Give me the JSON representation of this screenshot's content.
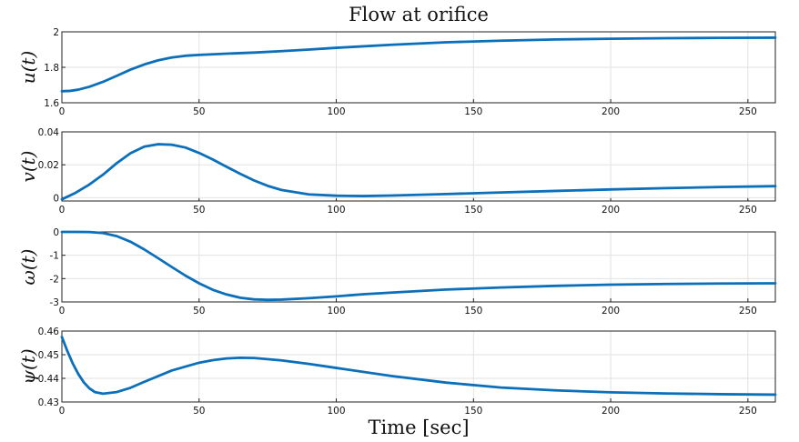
{
  "chart_data": {
    "type": "line",
    "title": "Flow at orifice",
    "xlabel": "Time [sec]",
    "line_color": "#0b6fba",
    "xlim": [
      0,
      260
    ],
    "x_ticks": [
      "0",
      "50",
      "100",
      "150",
      "200",
      "250"
    ],
    "subplots": [
      {
        "ylabel": "u(t)",
        "ylim": [
          1.6,
          2.0
        ],
        "y_ticks": [
          {
            "value": 1.6,
            "label": "1.6"
          },
          {
            "value": 1.8,
            "label": "1.8"
          },
          {
            "value": 2.0,
            "label": "2"
          }
        ],
        "series": {
          "x": [
            0,
            3,
            6,
            10,
            15,
            20,
            25,
            30,
            35,
            40,
            45,
            50,
            60,
            70,
            80,
            90,
            100,
            120,
            140,
            160,
            180,
            200,
            220,
            240,
            260
          ],
          "y": [
            1.665,
            1.667,
            1.674,
            1.69,
            1.718,
            1.752,
            1.787,
            1.816,
            1.839,
            1.855,
            1.865,
            1.87,
            1.877,
            1.883,
            1.891,
            1.9,
            1.91,
            1.927,
            1.941,
            1.95,
            1.957,
            1.961,
            1.964,
            1.966,
            1.967
          ]
        }
      },
      {
        "ylabel": "v(t)",
        "ylim": [
          -0.002,
          0.04
        ],
        "y_ticks": [
          {
            "value": 0,
            "label": "0"
          },
          {
            "value": 0.02,
            "label": "0.02"
          },
          {
            "value": 0.04,
            "label": "0.04"
          }
        ],
        "series": {
          "x": [
            0,
            5,
            10,
            15,
            20,
            25,
            30,
            35,
            40,
            45,
            50,
            55,
            60,
            65,
            70,
            75,
            80,
            90,
            100,
            110,
            120,
            140,
            160,
            180,
            200,
            220,
            240,
            260
          ],
          "y": [
            -0.001,
            0.003,
            0.008,
            0.014,
            0.021,
            0.027,
            0.031,
            0.0325,
            0.0322,
            0.0305,
            0.0272,
            0.0232,
            0.0188,
            0.0145,
            0.0105,
            0.0072,
            0.0047,
            0.002,
            0.0012,
            0.001,
            0.0013,
            0.0022,
            0.0032,
            0.0041,
            0.005,
            0.0058,
            0.0065,
            0.007
          ]
        }
      },
      {
        "ylabel": "ω(t)",
        "ylim": [
          -3,
          0
        ],
        "y_ticks": [
          {
            "value": -3,
            "label": "-3"
          },
          {
            "value": -2,
            "label": "-2"
          },
          {
            "value": -1,
            "label": "-1"
          },
          {
            "value": 0,
            "label": "0"
          }
        ],
        "series": {
          "x": [
            0,
            5,
            10,
            15,
            20,
            25,
            30,
            35,
            40,
            45,
            50,
            55,
            60,
            65,
            70,
            75,
            80,
            90,
            100,
            110,
            120,
            140,
            160,
            180,
            200,
            220,
            240,
            260
          ],
          "y": [
            0,
            0,
            -0.005,
            -0.05,
            -0.18,
            -0.42,
            -0.75,
            -1.12,
            -1.5,
            -1.87,
            -2.2,
            -2.48,
            -2.68,
            -2.82,
            -2.89,
            -2.91,
            -2.9,
            -2.84,
            -2.76,
            -2.67,
            -2.6,
            -2.47,
            -2.38,
            -2.31,
            -2.26,
            -2.23,
            -2.21,
            -2.2
          ]
        }
      },
      {
        "ylabel": "ψ(t)",
        "ylim": [
          0.43,
          0.46
        ],
        "y_ticks": [
          {
            "value": 0.43,
            "label": "0.43"
          },
          {
            "value": 0.44,
            "label": "0.44"
          },
          {
            "value": 0.45,
            "label": "0.45"
          },
          {
            "value": 0.46,
            "label": "0.46"
          }
        ],
        "series": {
          "x": [
            0,
            2,
            4,
            6,
            8,
            10,
            12,
            15,
            20,
            25,
            30,
            40,
            50,
            55,
            60,
            65,
            70,
            80,
            90,
            100,
            120,
            140,
            160,
            180,
            200,
            220,
            240,
            260
          ],
          "y": [
            0.4575,
            0.4515,
            0.4462,
            0.4418,
            0.4383,
            0.4358,
            0.4342,
            0.4335,
            0.4342,
            0.436,
            0.4385,
            0.4433,
            0.4466,
            0.4477,
            0.4484,
            0.4487,
            0.4486,
            0.4476,
            0.4461,
            0.4444,
            0.441,
            0.4382,
            0.4361,
            0.4349,
            0.4341,
            0.4336,
            0.4333,
            0.4331
          ]
        }
      }
    ]
  }
}
